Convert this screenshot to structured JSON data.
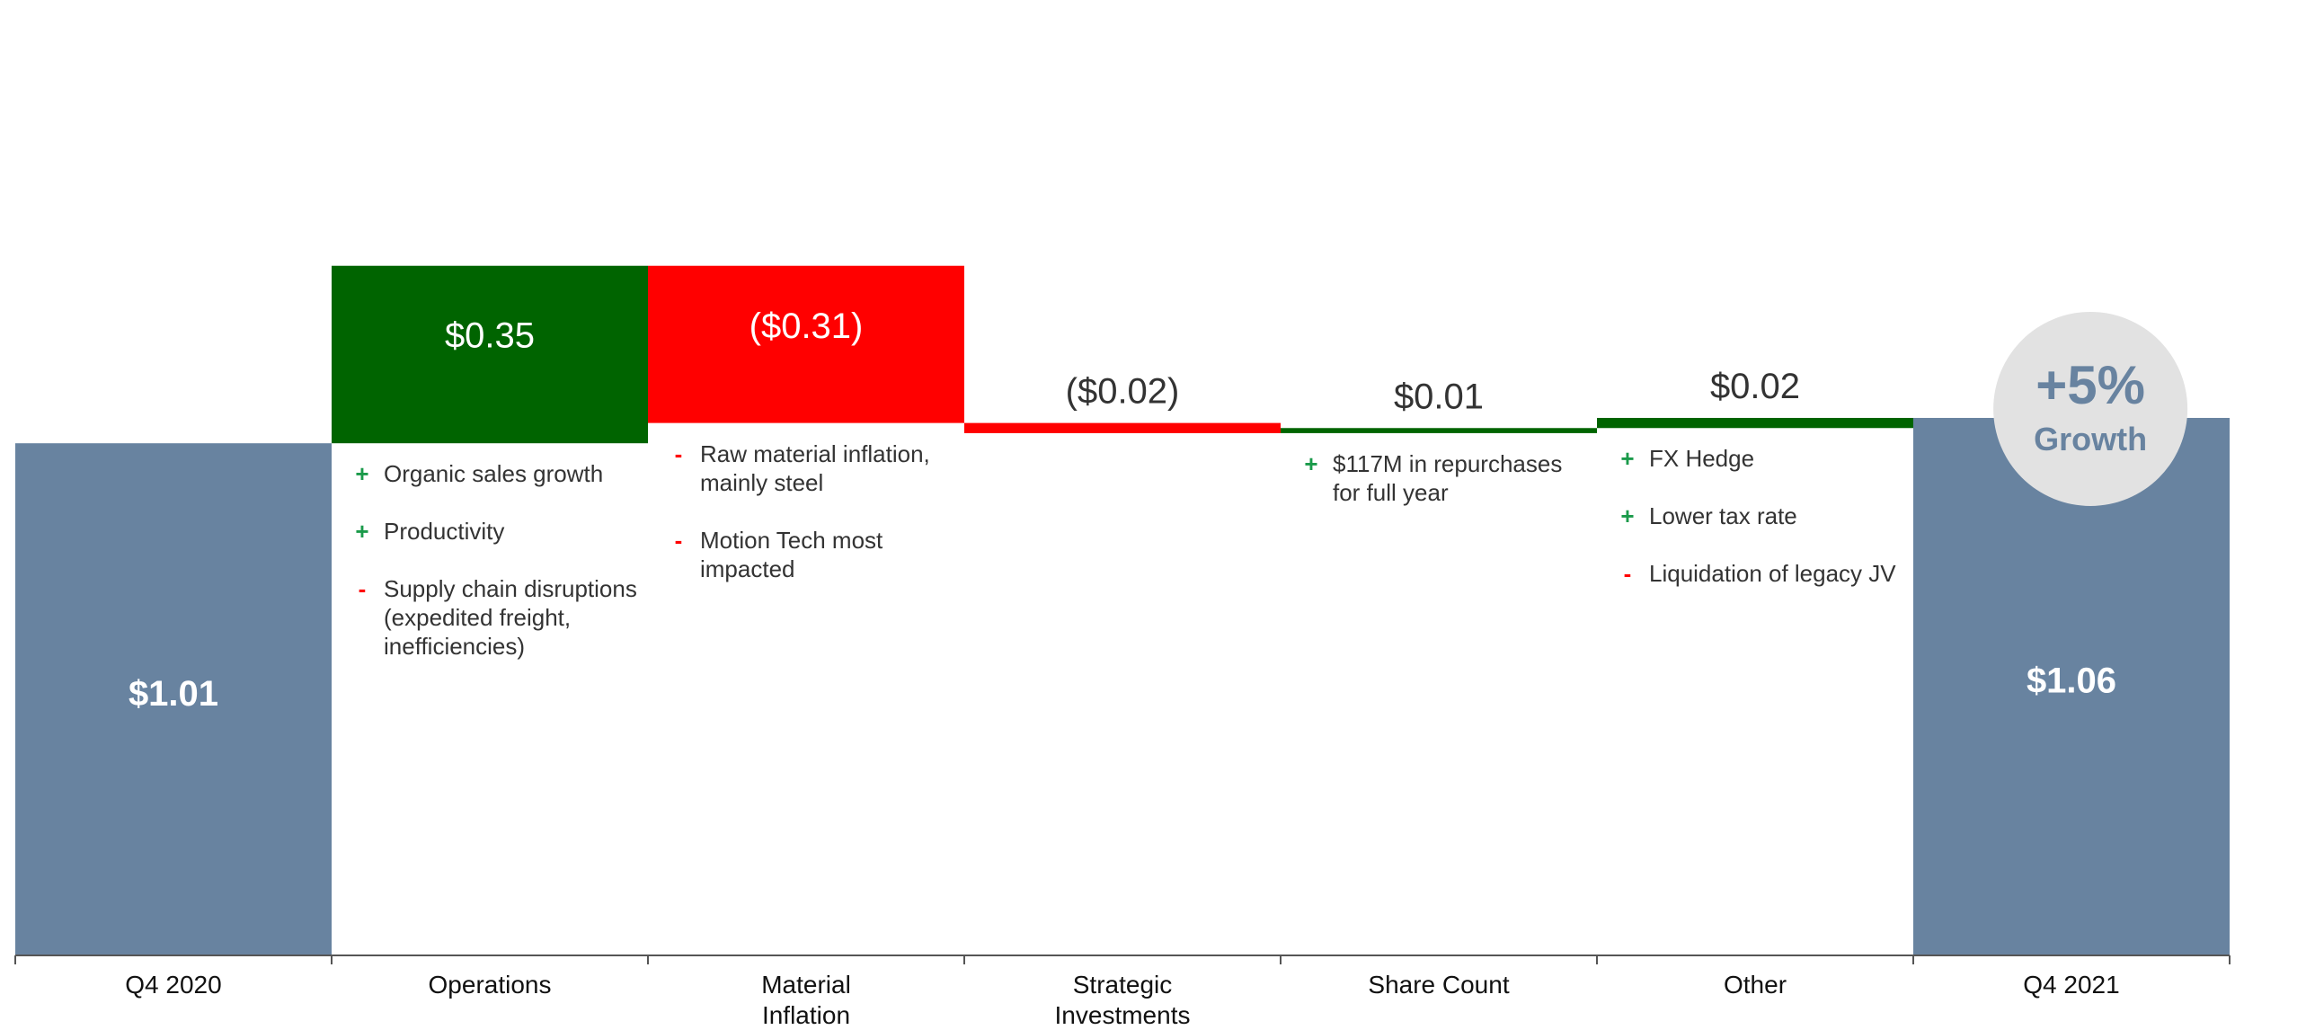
{
  "chart_data": {
    "type": "bar",
    "title": "",
    "xlabel": "",
    "ylabel": "",
    "categories": [
      "Q4 2020",
      "Operations",
      "Material Inflation",
      "Strategic Investments",
      "Share Count",
      "Other",
      "Q4 2021"
    ],
    "values": [
      1.01,
      0.35,
      -0.31,
      -0.02,
      0.01,
      0.02,
      1.06
    ],
    "kinds": [
      "total",
      "delta",
      "delta",
      "delta",
      "delta",
      "delta",
      "total"
    ],
    "value_labels": [
      "$1.01",
      "$0.35",
      "($0.31)",
      "($0.02)",
      "$0.01",
      "$0.02",
      "$1.06"
    ],
    "ylim": [
      0,
      1.87
    ],
    "grid": false,
    "legend": "none",
    "colors": {
      "total": "#6883a0",
      "increase": "#006400",
      "decrease": "#ff0000",
      "axis": "#555555",
      "badge_bg": "#e2e2e2",
      "badge_text": "#6883a0",
      "plus_mark": "#1a9a4a",
      "minus_mark": "#ff0000"
    },
    "badge": {
      "value": "+5%",
      "label": "Growth"
    }
  },
  "notes": [
    {
      "category": "Operations",
      "items": [
        {
          "mark": "+",
          "text": "Organic sales growth"
        },
        {
          "mark": "+",
          "text": "Productivity"
        },
        {
          "mark": "-",
          "text": "Supply chain disruptions (expedited freight, inefficiencies)"
        }
      ]
    },
    {
      "category": "Material Inflation",
      "items": [
        {
          "mark": "-",
          "text": "Raw material inflation, mainly steel"
        },
        {
          "mark": "-",
          "text": "Motion Tech most impacted"
        }
      ]
    },
    {
      "category": "Share Count",
      "items": [
        {
          "mark": "+",
          "text": "$117M in repurchases for full year"
        }
      ]
    },
    {
      "category": "Other",
      "items": [
        {
          "mark": "+",
          "text": "FX Hedge"
        },
        {
          "mark": "+",
          "text": "Lower tax rate"
        },
        {
          "mark": "-",
          "text": "Liquidation of legacy JV"
        }
      ]
    }
  ]
}
